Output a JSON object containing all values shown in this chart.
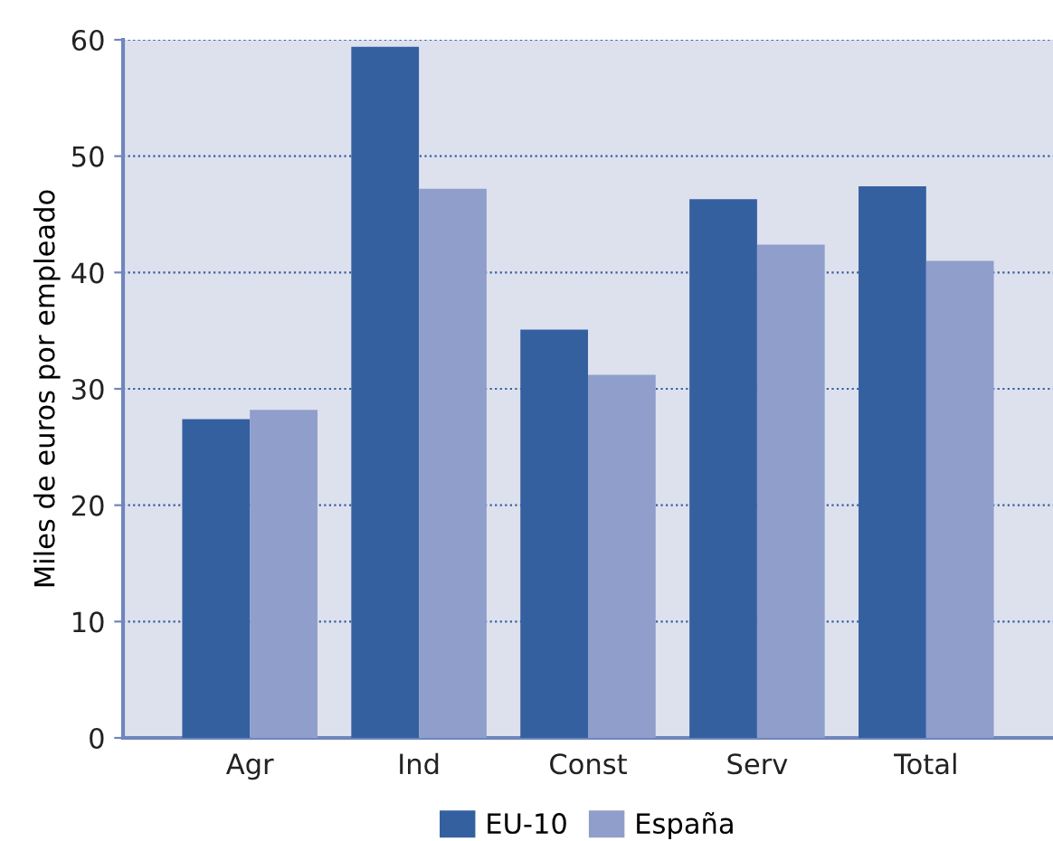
{
  "chart_data": {
    "type": "bar",
    "ylabel": "Miles de euros por empleado",
    "categories": [
      "Agr",
      "Ind",
      "Const",
      "Serv",
      "Total"
    ],
    "series": [
      {
        "name": "EU-10",
        "color": "#3560a0",
        "values": [
          27.4,
          59.4,
          35.1,
          46.3,
          47.4
        ]
      },
      {
        "name": "España",
        "color": "#8f9ecb",
        "values": [
          28.2,
          47.2,
          31.2,
          42.4,
          41.0
        ]
      }
    ],
    "ylim": [
      0,
      60
    ],
    "yticks": [
      0,
      10,
      20,
      30,
      40,
      50,
      60
    ],
    "grid": "y",
    "legend": "bottom"
  }
}
